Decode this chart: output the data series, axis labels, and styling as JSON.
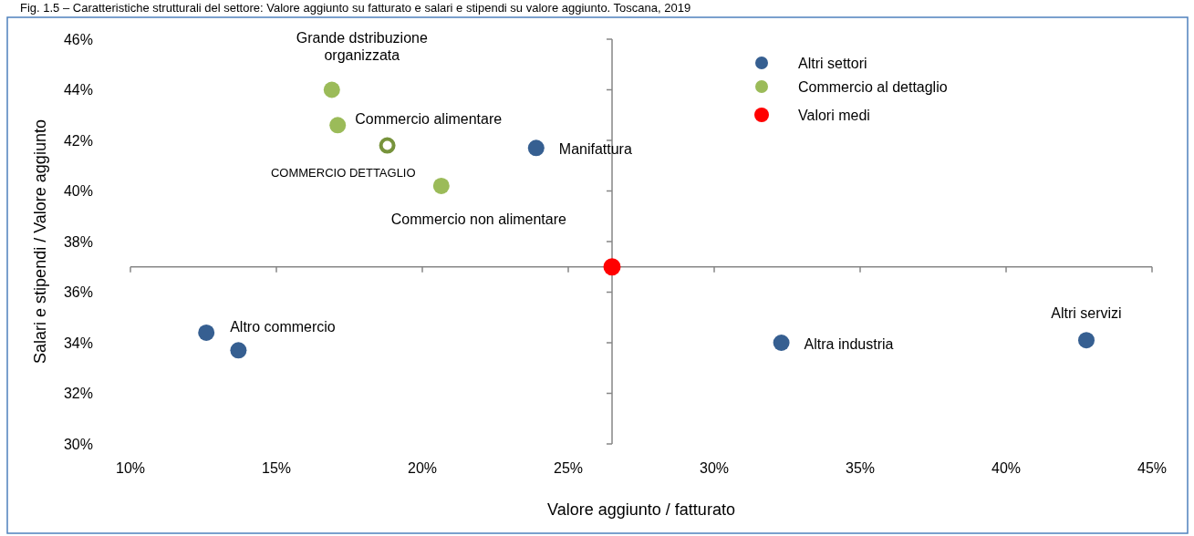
{
  "chart_data": {
    "type": "scatter",
    "title": "Fig. 1.5 – Caratteristiche strutturali del settore: Valore aggiunto su fatturato e salari e stipendi su valore aggiunto. Toscana, 2019",
    "xlabel": "Valore aggiunto / fatturato",
    "ylabel": "Salari e stipendi / Valore aggiunto",
    "xlim": [
      10,
      45
    ],
    "ylim": [
      30,
      46
    ],
    "xticks": [
      {
        "value": 10,
        "label": "10%"
      },
      {
        "value": 15,
        "label": "15%"
      },
      {
        "value": 20,
        "label": "20%"
      },
      {
        "value": 25,
        "label": "25%"
      },
      {
        "value": 30,
        "label": "30%"
      },
      {
        "value": 35,
        "label": "35%"
      },
      {
        "value": 40,
        "label": "40%"
      },
      {
        "value": 45,
        "label": "45%"
      }
    ],
    "yticks": [
      {
        "value": 30,
        "label": "30%"
      },
      {
        "value": 32,
        "label": "32%"
      },
      {
        "value": 34,
        "label": "34%"
      },
      {
        "value": 36,
        "label": "36%"
      },
      {
        "value": 38,
        "label": "38%"
      },
      {
        "value": 40,
        "label": "40%"
      },
      {
        "value": 42,
        "label": "42%"
      },
      {
        "value": 44,
        "label": "44%"
      },
      {
        "value": 46,
        "label": "46%"
      }
    ],
    "ref_lines": [
      {
        "axis": "x",
        "value": 26.5,
        "color": "#868686"
      },
      {
        "axis": "y",
        "value": 37,
        "color": "#868686"
      }
    ],
    "series": [
      {
        "name": "Altri settori",
        "color": "#365f91",
        "x": [
          23.9,
          12.6,
          13.7,
          32.3,
          42.75
        ],
        "values": [
          41.7,
          34.4,
          33.7,
          34.0,
          34.1
        ]
      },
      {
        "name": "Commercio al dettaglio",
        "color": "#9bbb59",
        "x": [
          16.9,
          17.1,
          20.65
        ],
        "values": [
          44.0,
          42.6,
          40.2
        ]
      },
      {
        "name": "Valori medi",
        "color": "#ff0000",
        "x": [
          26.5
        ],
        "values": [
          37.0
        ]
      },
      {
        "color": "#77933c",
        "x": [
          18.8
        ],
        "values": [
          41.8
        ]
      }
    ],
    "annotations": [
      {
        "text": "Grande dstribuzione organizzata",
        "x": 16.9,
        "y": 44.0
      },
      {
        "text": "Commercio alimentare",
        "x": 17.1,
        "y": 42.6
      },
      {
        "text": "COMMERCIO DETTAGLIO",
        "x": 18.8,
        "y": 41.8
      },
      {
        "text": "Commercio non alimentare",
        "x": 20.65,
        "y": 40.2
      },
      {
        "text": "Manifattura",
        "x": 23.9,
        "y": 41.7
      },
      {
        "text": "Altro commercio",
        "x": 12.6,
        "y": 34.4
      },
      {
        "text": "Altra industria",
        "x": 32.3,
        "y": 34.0
      },
      {
        "text": "Altri servizi",
        "x": 42.75,
        "y": 34.1
      }
    ],
    "legend": "top right",
    "marker": "circle",
    "grid": false
  }
}
